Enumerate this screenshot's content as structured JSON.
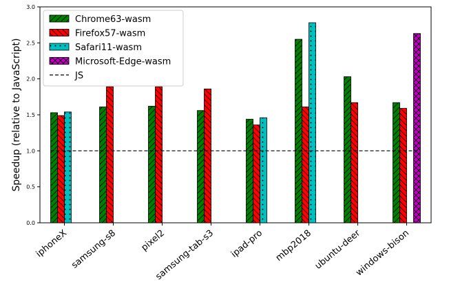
{
  "chart_data": {
    "type": "bar",
    "title": "",
    "xlabel": "",
    "ylabel": "Speedup (relative to JavaScript)",
    "ylim": [
      0,
      3.0
    ],
    "yticks": [
      0.0,
      0.5,
      1.0,
      1.5,
      2.0,
      2.5,
      3.0
    ],
    "ytick_labels": [
      "0.0",
      "0.5",
      "1.0",
      "1.5",
      "2.0",
      "2.5",
      "3.0"
    ],
    "grid": false,
    "legend_position": "top-left",
    "categories": [
      "iphoneX",
      "samsung-s8",
      "pixel2",
      "samsung-tab-s3",
      "ipad-pro",
      "mbp2018",
      "ubuntu-deer",
      "windows-bison"
    ],
    "series": [
      {
        "name": "Chrome63-wasm",
        "color": "#008000",
        "hatch": "diagonal-forward",
        "values": [
          1.53,
          1.61,
          1.62,
          1.56,
          1.44,
          2.55,
          2.03,
          1.67
        ]
      },
      {
        "name": "Firefox57-wasm",
        "color": "#ff0000",
        "hatch": "diagonal-back",
        "values": [
          1.49,
          1.89,
          1.89,
          1.86,
          1.36,
          1.61,
          1.67,
          1.59
        ]
      },
      {
        "name": "Safari11-wasm",
        "color": "#00bfbf",
        "hatch": "dots",
        "values": [
          1.54,
          0,
          0,
          0,
          1.46,
          2.78,
          0,
          0
        ]
      },
      {
        "name": "Microsoft-Edge-wasm",
        "color": "#bf00bf",
        "hatch": "crosshatch",
        "values": [
          0,
          0,
          0,
          0,
          0,
          0,
          0,
          2.63
        ]
      }
    ],
    "reference_line": {
      "name": "JS",
      "value": 1.0,
      "style": "dashed",
      "color": "#000000"
    }
  }
}
